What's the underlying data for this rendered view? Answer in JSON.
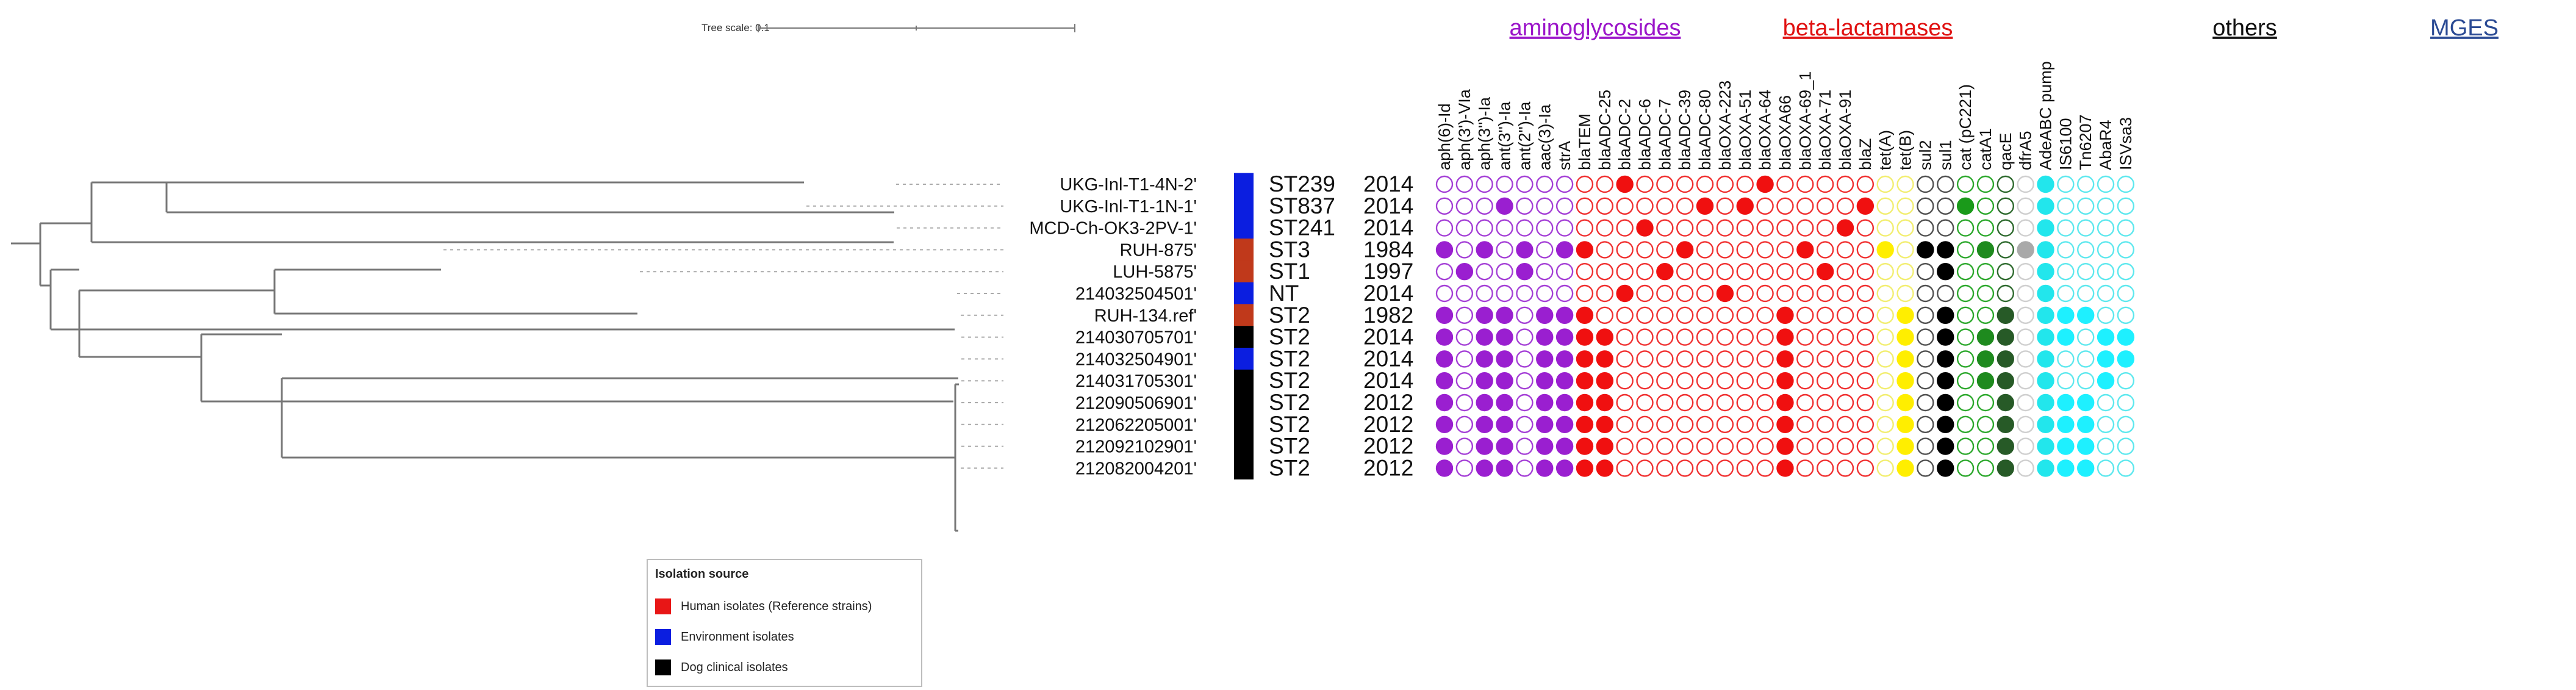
{
  "tree_scale": {
    "label": "Tree scale: 0.1"
  },
  "taxa": [
    {
      "label": "UKG-Inl-T1-4N-2'",
      "st": "ST239",
      "year": "2014",
      "source": "environment"
    },
    {
      "label": "UKG-Inl-T1-1N-1'",
      "st": "ST837",
      "year": "2014",
      "source": "environment"
    },
    {
      "label": "MCD-Ch-OK3-2PV-1'",
      "st": "ST241",
      "year": "2014",
      "source": "environment"
    },
    {
      "label": "RUH-875'",
      "st": "ST3",
      "year": "1984",
      "source": "human"
    },
    {
      "label": "LUH-5875'",
      "st": "ST1",
      "year": "1997",
      "source": "human"
    },
    {
      "label": "214032504501'",
      "st": "NT",
      "year": "2014",
      "source": "environment"
    },
    {
      "label": "RUH-134.ref'",
      "st": "ST2",
      "year": "1982",
      "source": "human"
    },
    {
      "label": "214030705701'",
      "st": "ST2",
      "year": "2014",
      "source": "dog"
    },
    {
      "label": "214032504901'",
      "st": "ST2",
      "year": "2014",
      "source": "environment"
    },
    {
      "label": "214031705301'",
      "st": "ST2",
      "year": "2014",
      "source": "dog"
    },
    {
      "label": "212090506901'",
      "st": "ST2",
      "year": "2012",
      "source": "dog"
    },
    {
      "label": "212062205001'",
      "st": "ST2",
      "year": "2012",
      "source": "dog"
    },
    {
      "label": "212092102901'",
      "st": "ST2",
      "year": "2012",
      "source": "dog"
    },
    {
      "label": "212082004201'",
      "st": "ST2",
      "year": "2012",
      "source": "dog"
    }
  ],
  "source_colors": {
    "human": "#c0391b",
    "environment": "#0b1ee0",
    "dog": "#000000"
  },
  "groups": [
    {
      "label": "aminoglycosides",
      "color": "#9b15c9"
    },
    {
      "label": "beta-lactamases",
      "color": "#e01212"
    },
    {
      "label": "others",
      "color": "#111111"
    },
    {
      "label": "MGES",
      "color": "#2a4a94"
    }
  ],
  "genes": [
    {
      "label": "aph(6)-Id",
      "group": 0,
      "outline": "#a43fd6",
      "fill": "#9a1fd0",
      "present": [
        3,
        6,
        7,
        8,
        9,
        10,
        11,
        12,
        13
      ]
    },
    {
      "label": "aph(3')-VIa",
      "group": 0,
      "outline": "#a43fd6",
      "fill": "#9a1fd0",
      "present": [
        4
      ]
    },
    {
      "label": "aph(3'')-Ia",
      "group": 0,
      "outline": "#a43fd6",
      "fill": "#9a1fd0",
      "present": [
        3,
        6,
        7,
        8,
        9,
        10,
        11,
        12,
        13
      ]
    },
    {
      "label": "ant(3'')-Ia",
      "group": 0,
      "outline": "#a43fd6",
      "fill": "#9a1fd0",
      "present": [
        1,
        6,
        7,
        8,
        9,
        10,
        11,
        12,
        13
      ]
    },
    {
      "label": "ant(2'')-Ia",
      "group": 0,
      "outline": "#a43fd6",
      "fill": "#9a1fd0",
      "present": [
        3,
        4
      ]
    },
    {
      "label": "aac(3)-Ia",
      "group": 0,
      "outline": "#a43fd6",
      "fill": "#9a1fd0",
      "present": [
        6,
        7,
        8,
        9,
        10,
        11,
        12,
        13
      ]
    },
    {
      "label": "strA",
      "group": 0,
      "outline": "#a43fd6",
      "fill": "#9a1fd0",
      "present": [
        3,
        6,
        7,
        8,
        9,
        10,
        11,
        12,
        13
      ]
    },
    {
      "label": "blaTEM",
      "group": 1,
      "outline": "#f03030",
      "fill": "#f01010",
      "present": [
        3,
        6,
        7,
        8,
        9,
        10,
        11,
        12,
        13
      ]
    },
    {
      "label": "blaADC-25",
      "group": 1,
      "outline": "#f03030",
      "fill": "#f01010",
      "present": [
        7,
        8,
        9,
        10,
        11,
        12,
        13
      ]
    },
    {
      "label": "blaADC-2",
      "group": 1,
      "outline": "#f03030",
      "fill": "#f01010",
      "present": [
        0,
        5
      ]
    },
    {
      "label": "blaADC-6",
      "group": 1,
      "outline": "#f03030",
      "fill": "#f01010",
      "present": [
        2
      ]
    },
    {
      "label": "blaADC-7",
      "group": 1,
      "outline": "#f03030",
      "fill": "#f01010",
      "present": [
        4
      ]
    },
    {
      "label": "blaADC-39",
      "group": 1,
      "outline": "#f03030",
      "fill": "#f01010",
      "present": [
        3
      ]
    },
    {
      "label": "blaADC-80",
      "group": 1,
      "outline": "#f03030",
      "fill": "#f01010",
      "present": [
        1
      ]
    },
    {
      "label": "blaOXA-223",
      "group": 1,
      "outline": "#f03030",
      "fill": "#f01010",
      "present": [
        5
      ]
    },
    {
      "label": "blaOXA-51",
      "group": 1,
      "outline": "#f03030",
      "fill": "#f01010",
      "present": [
        1
      ]
    },
    {
      "label": "blaOXA-64",
      "group": 1,
      "outline": "#f03030",
      "fill": "#f01010",
      "present": [
        0
      ]
    },
    {
      "label": "blaOXA66",
      "group": 1,
      "outline": "#f03030",
      "fill": "#f01010",
      "present": [
        6,
        7,
        8,
        9,
        10,
        11,
        12,
        13
      ]
    },
    {
      "label": "blaOXA-69_1",
      "group": 1,
      "outline": "#f03030",
      "fill": "#f01010",
      "present": [
        3
      ]
    },
    {
      "label": "blaOXA-71",
      "group": 1,
      "outline": "#f03030",
      "fill": "#f01010",
      "present": [
        4
      ]
    },
    {
      "label": "blaOXA-91",
      "group": 1,
      "outline": "#f03030",
      "fill": "#f01010",
      "present": [
        2
      ]
    },
    {
      "label": "blaZ",
      "group": 1,
      "outline": "#f03030",
      "fill": "#f01010",
      "present": [
        1
      ]
    },
    {
      "label": "tet(A)",
      "group": 2,
      "outline": "#f2ee70",
      "fill": "#ffee00",
      "present": [
        3
      ]
    },
    {
      "label": "tet(B)",
      "group": 2,
      "outline": "#f2ee70",
      "fill": "#ffee00",
      "present": [
        6,
        7,
        8,
        9,
        10,
        11,
        12,
        13
      ]
    },
    {
      "label": "sul2",
      "group": 2,
      "outline": "#505050",
      "fill": "#000000",
      "present": [
        3
      ]
    },
    {
      "label": "sul1",
      "group": 2,
      "outline": "#505050",
      "fill": "#000000",
      "present": [
        3,
        4,
        6,
        7,
        8,
        9,
        10,
        11,
        12,
        13
      ]
    },
    {
      "label": "cat (pC221)",
      "group": 2,
      "outline": "#2ca82c",
      "fill": "#1a9a1a",
      "present": [
        1
      ]
    },
    {
      "label": "catA1",
      "group": 2,
      "outline": "#2ca82c",
      "fill": "#1e8a1e",
      "present": [
        3,
        7,
        8,
        9
      ]
    },
    {
      "label": "qacE",
      "group": 2,
      "outline": "#2e6a2e",
      "fill": "#275a27",
      "present": [
        6,
        7,
        8,
        9,
        10,
        11,
        12,
        13
      ]
    },
    {
      "label": "dfrA5",
      "group": 2,
      "outline": "#cfcfcf",
      "fill": "#a9a9a9",
      "present": [
        3
      ]
    },
    {
      "label": "AdeABC pump",
      "group": 3,
      "outline": "#5ee8ee",
      "fill": "#22e6ec",
      "present": [
        0,
        1,
        2,
        3,
        4,
        5,
        6,
        7,
        8,
        9,
        10,
        11,
        12,
        13
      ]
    },
    {
      "label": "IS6100",
      "group": 3,
      "outline": "#5ee8ee",
      "fill": "#1ef0ff",
      "present": [
        6,
        7,
        10,
        11,
        12,
        13
      ]
    },
    {
      "label": "Tn6207",
      "group": 3,
      "outline": "#5ee8ee",
      "fill": "#1ef0ff",
      "present": [
        6,
        10,
        11,
        12,
        13
      ]
    },
    {
      "label": "AbaR4",
      "group": 3,
      "outline": "#5ee8ee",
      "fill": "#1ef0ff",
      "present": [
        7,
        8,
        9
      ]
    },
    {
      "label": "ISVsa3",
      "group": 3,
      "outline": "#5ee8ee",
      "fill": "#1ef0ff",
      "present": [
        7,
        8
      ]
    }
  ],
  "legend": {
    "title": "Isolation source",
    "items": [
      {
        "label": "Human isolates (Reference strains)",
        "color": "#e81616"
      },
      {
        "label": "Environment isolates",
        "color": "#0b1ee0"
      },
      {
        "label": "Dog clinical isolates",
        "color": "#000000"
      }
    ]
  }
}
